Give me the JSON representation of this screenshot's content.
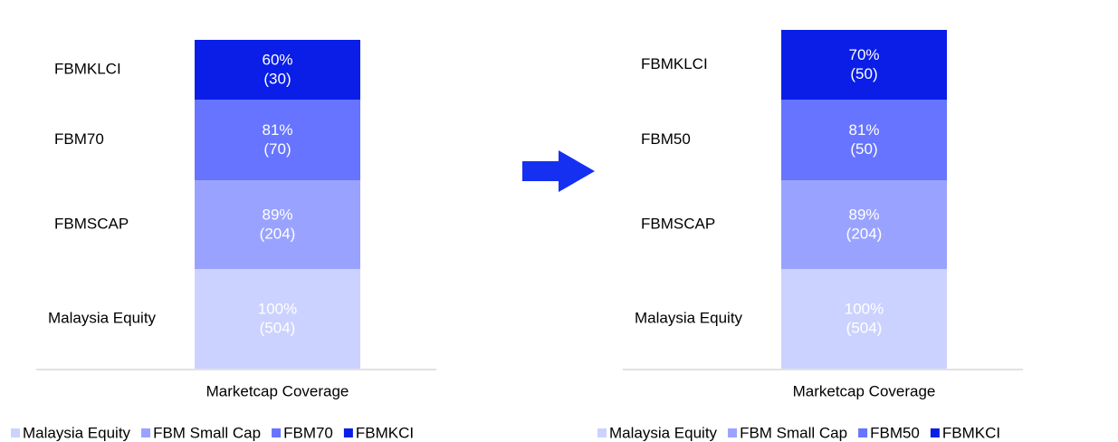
{
  "chart_data": [
    {
      "type": "stacked_bar",
      "x_label": "Marketcap Coverage",
      "series": [
        {
          "name": "Malaysia Equity",
          "label": "Malaysia Equity",
          "color": "#ccd2ff",
          "values": [
            100
          ],
          "value_labels": [
            "100%"
          ],
          "count_labels": [
            "(504)"
          ]
        },
        {
          "name": "FBM Small Cap",
          "label": "FBMSCAP",
          "color": "#99a3ff",
          "values": [
            89
          ],
          "value_labels": [
            "89%"
          ],
          "count_labels": [
            "(204)"
          ]
        },
        {
          "name": "FBM70",
          "label": "FBM70",
          "color": "#6674ff",
          "values": [
            81
          ],
          "value_labels": [
            "81%"
          ],
          "count_labels": [
            "(70)"
          ]
        },
        {
          "name": "FBMKCI",
          "label": "FBMKLCI",
          "color": "#0a1ee8",
          "values": [
            60
          ],
          "value_labels": [
            "60%"
          ],
          "count_labels": [
            "(30)"
          ]
        }
      ]
    },
    {
      "type": "stacked_bar",
      "x_label": "Marketcap Coverage",
      "series": [
        {
          "name": "Malaysia Equity",
          "label": "Malaysia Equity",
          "color": "#ccd2ff",
          "values": [
            100
          ],
          "value_labels": [
            "100%"
          ],
          "count_labels": [
            "(504)"
          ]
        },
        {
          "name": "FBM Small Cap",
          "label": "FBMSCAP",
          "color": "#99a3ff",
          "values": [
            89
          ],
          "value_labels": [
            "89%"
          ],
          "count_labels": [
            "(204)"
          ]
        },
        {
          "name": "FBM50",
          "label": "FBM50",
          "color": "#6674ff",
          "values": [
            81
          ],
          "value_labels": [
            "81%"
          ],
          "count_labels": [
            "(50)"
          ]
        },
        {
          "name": "FBMKCI",
          "label": "FBMKLCI",
          "color": "#0a1ee8",
          "values": [
            70
          ],
          "value_labels": [
            "70%"
          ],
          "count_labels": [
            "(50)"
          ]
        }
      ]
    }
  ]
}
